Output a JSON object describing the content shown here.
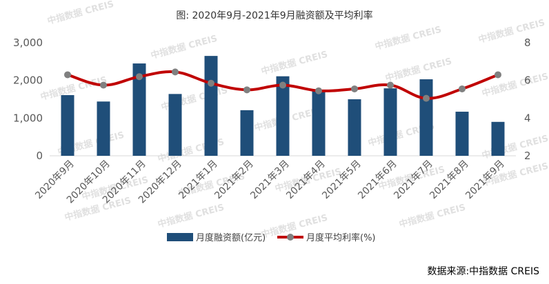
{
  "title": "图:  2020年9月-2021年9月融资额及平均利率",
  "source": "数据来源:中指数据 CREIS",
  "watermark": "中指数据 CREIS",
  "chart_data": {
    "type": "bar",
    "title": "图:  2020年9月-2021年9月融资额及平均利率",
    "categories": [
      "2020年9月",
      "2020年10月",
      "2020年11月",
      "2020年12月",
      "2021年1月",
      "2021年2月",
      "2021年3月",
      "2021年4月",
      "2021年5月",
      "2021年6月",
      "2021年7月",
      "2021年8月",
      "2021年9月"
    ],
    "y_left": {
      "ylim": [
        0,
        3000
      ],
      "ticks": [
        "0",
        "1,000",
        "2,000",
        "3,000"
      ],
      "tick_values": [
        0,
        1000,
        2000,
        3000
      ]
    },
    "y_right": {
      "ylim": [
        2,
        8
      ],
      "ticks": [
        "2",
        "4",
        "6",
        "8"
      ],
      "tick_values": [
        2,
        4,
        6,
        8
      ]
    },
    "series": [
      {
        "name": "月度融资额(亿元)",
        "type": "bar",
        "axis": "left",
        "color": "#1f4e79",
        "values": [
          1610,
          1440,
          2450,
          1640,
          2650,
          1210,
          2110,
          1750,
          1500,
          1790,
          2030,
          1170,
          900
        ]
      },
      {
        "name": "月度平均利率(%)",
        "type": "line",
        "axis": "right",
        "color": "#c00000",
        "marker_color": "#808080",
        "values": [
          6.3,
          5.75,
          6.2,
          6.45,
          5.85,
          5.5,
          5.75,
          5.45,
          5.55,
          5.75,
          5.05,
          5.55,
          6.3
        ]
      }
    ],
    "grid": false,
    "legend": "bottom"
  }
}
